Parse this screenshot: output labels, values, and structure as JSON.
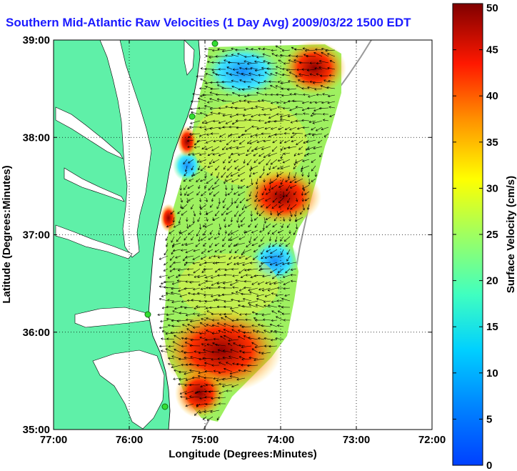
{
  "map": {
    "title": "Southern Mid-Atlantic Raw Velocities (1 Day Avg) 2009/03/22 1500 EDT",
    "xlabel": "Longitude (Degrees:Minutes)",
    "ylabel": "Latitude (Degrees:Minutes)",
    "x_ticks": [
      "77:00",
      "76:00",
      "75:00",
      "74:00",
      "73:00",
      "72:00"
    ],
    "y_ticks": [
      "39:00",
      "38:00",
      "37:00",
      "36:00",
      "35:00"
    ],
    "lon_range": [
      -77,
      -72
    ],
    "lat_range": [
      35,
      39
    ],
    "grid": true,
    "colors": {
      "land": "#5ff0a8",
      "water": "#ffffff",
      "title": "#1a1aff",
      "coast_line": "#000000",
      "station": "#33dd33",
      "isobath": "#999999"
    }
  },
  "colorbar": {
    "label": "Surface Velocity (cm/s)",
    "min": 0,
    "max": 50,
    "ticks": [
      "0",
      "5",
      "10",
      "15",
      "20",
      "25",
      "30",
      "35",
      "40",
      "45",
      "50"
    ],
    "colormap": "jet"
  }
}
